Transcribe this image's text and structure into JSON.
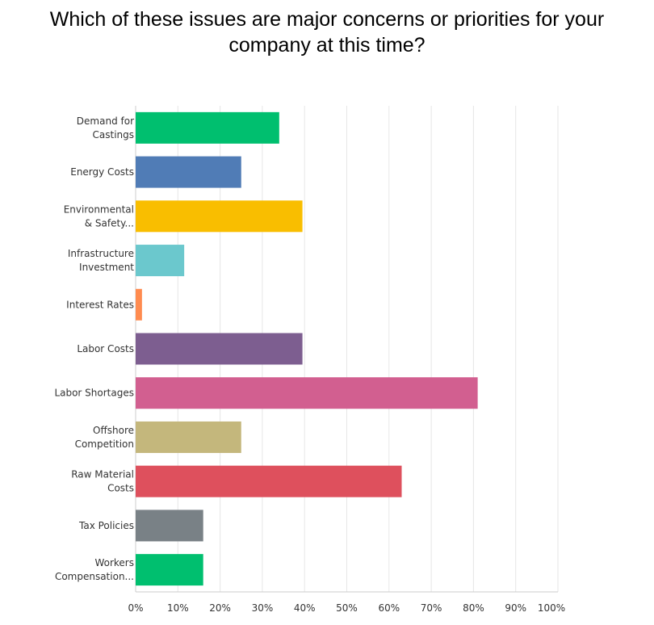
{
  "chart_data": {
    "type": "bar",
    "orientation": "horizontal",
    "title_lines": [
      "Which of these issues are major concerns or priorities for your",
      "company at this time?"
    ],
    "categories": [
      {
        "lines": [
          "Demand for",
          "Castings"
        ],
        "value": 34,
        "color": "#00bf6f"
      },
      {
        "lines": [
          "Energy Costs"
        ],
        "value": 25,
        "color": "#507cb6"
      },
      {
        "lines": [
          "Environmental",
          "& Safety..."
        ],
        "value": 39.5,
        "color": "#f9be00"
      },
      {
        "lines": [
          "Infrastructure",
          "Investment"
        ],
        "value": 11.5,
        "color": "#6bc8cd"
      },
      {
        "lines": [
          "Interest Rates"
        ],
        "value": 1.5,
        "color": "#ff8b4f"
      },
      {
        "lines": [
          "Labor Costs"
        ],
        "value": 39.5,
        "color": "#7d5e90"
      },
      {
        "lines": [
          "Labor Shortages"
        ],
        "value": 81,
        "color": "#d25f90"
      },
      {
        "lines": [
          "Offshore",
          "Competition"
        ],
        "value": 25,
        "color": "#c4b77c"
      },
      {
        "lines": [
          "Raw Material",
          "Costs"
        ],
        "value": 63,
        "color": "#de505d"
      },
      {
        "lines": [
          "Tax Policies"
        ],
        "value": 16,
        "color": "#798186"
      },
      {
        "lines": [
          "Workers",
          "Compensation..."
        ],
        "value": 16,
        "color": "#00bf6f"
      }
    ],
    "x_ticks": [
      "0%",
      "10%",
      "20%",
      "30%",
      "40%",
      "50%",
      "60%",
      "70%",
      "80%",
      "90%",
      "100%"
    ],
    "xlim": [
      0,
      100
    ],
    "grid": "vertical",
    "legend": "none"
  }
}
